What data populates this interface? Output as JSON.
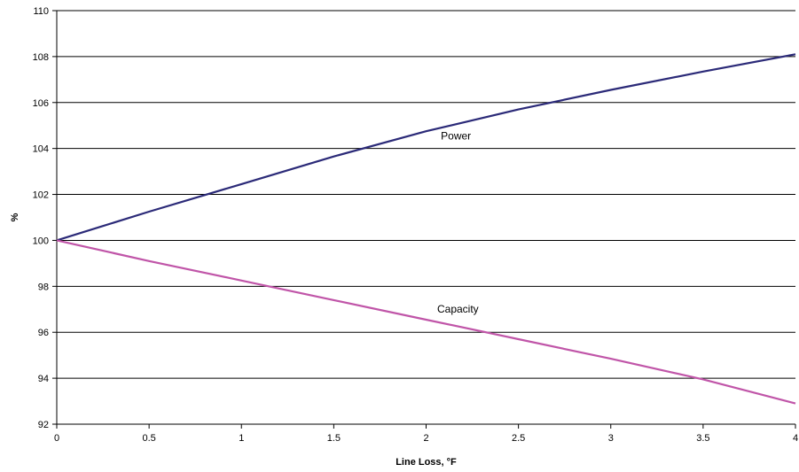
{
  "chart_data": {
    "type": "line",
    "title": "",
    "xlabel": "Line Loss, °F",
    "ylabel": "%",
    "xlim": [
      0,
      4
    ],
    "ylim": [
      92,
      110
    ],
    "x_ticks": [
      0,
      0.5,
      1,
      1.5,
      2,
      2.5,
      3,
      3.5,
      4
    ],
    "y_ticks": [
      92,
      94,
      96,
      98,
      100,
      102,
      104,
      106,
      108,
      110
    ],
    "grid": "horizontal",
    "legend": "none",
    "series": [
      {
        "name": "Power",
        "color": "#2b2a78",
        "label_at": [
          2.08,
          104.4
        ],
        "x": [
          0,
          0.5,
          1,
          1.5,
          2,
          2.5,
          3,
          3.5,
          4
        ],
        "y": [
          100,
          101.25,
          102.45,
          103.65,
          104.75,
          105.7,
          106.55,
          107.35,
          108.1
        ]
      },
      {
        "name": "Capacity",
        "color": "#c055a8",
        "label_at": [
          2.06,
          96.85
        ],
        "x": [
          0,
          0.5,
          1,
          1.5,
          2,
          2.5,
          3,
          3.5,
          4
        ],
        "y": [
          100,
          99.1,
          98.25,
          97.4,
          96.55,
          95.7,
          94.85,
          93.95,
          92.9
        ]
      }
    ]
  }
}
